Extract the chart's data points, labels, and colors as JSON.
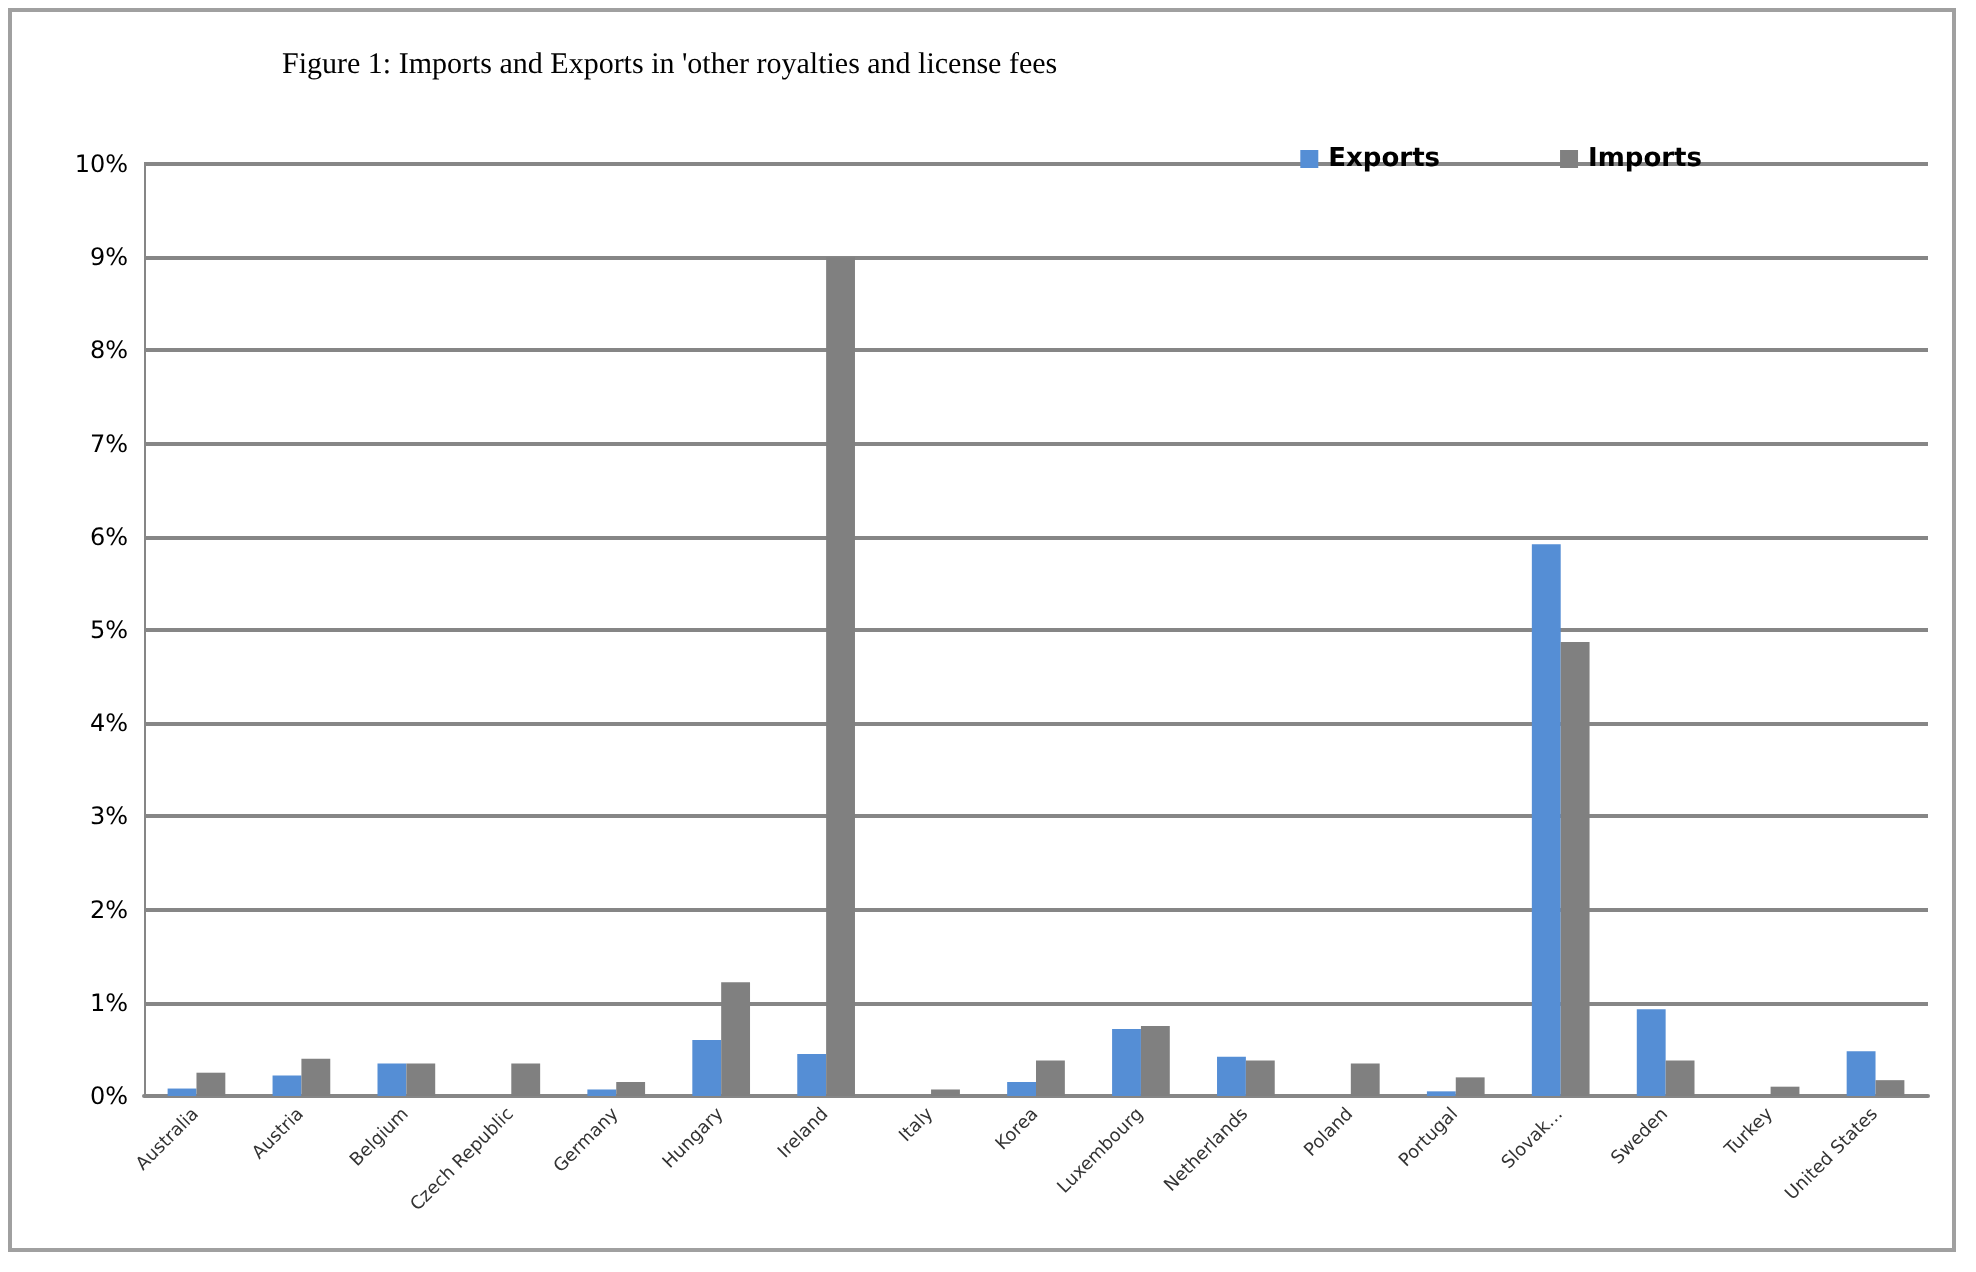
{
  "chart_data": {
    "type": "bar",
    "title": "Figure 1: Imports and Exports in 'other royalties and license fees",
    "categories": [
      "Australia",
      "Austria",
      "Belgium",
      "Czech Republic",
      "Germany",
      "Hungary",
      "Ireland",
      "Italy",
      "Korea",
      "Luxembourg",
      "Netherlands",
      "Poland",
      "Portugal",
      "Slovak…",
      "Sweden",
      "Turkey",
      "United States"
    ],
    "series": [
      {
        "name": "Exports",
        "color": "#558ed5",
        "values": [
          0.08,
          0.22,
          0.35,
          0,
          0.07,
          0.6,
          0.45,
          0,
          0.15,
          0.72,
          0.42,
          0,
          0.05,
          5.92,
          0.93,
          0,
          0.48
        ]
      },
      {
        "name": "Imports",
        "color": "#808080",
        "values": [
          0.25,
          0.4,
          0.35,
          0.35,
          0.15,
          1.22,
          9.0,
          0.07,
          0.38,
          0.75,
          0.38,
          0.35,
          0.2,
          4.87,
          0.38,
          0.1,
          0.17
        ]
      }
    ],
    "ylim": [
      0,
      10
    ],
    "yticks": [
      {
        "value": 0,
        "label": "0%"
      },
      {
        "value": 1,
        "label": "1%"
      },
      {
        "value": 2,
        "label": "2%"
      },
      {
        "value": 3,
        "label": "3%"
      },
      {
        "value": 4,
        "label": "4%"
      },
      {
        "value": 5,
        "label": "5%"
      },
      {
        "value": 6,
        "label": "6%"
      },
      {
        "value": 7,
        "label": "7%"
      },
      {
        "value": 8,
        "label": "8%"
      },
      {
        "value": 9,
        "label": "9%"
      },
      {
        "value": 10,
        "label": "10%"
      }
    ],
    "grid": "y",
    "legend": "top right"
  }
}
